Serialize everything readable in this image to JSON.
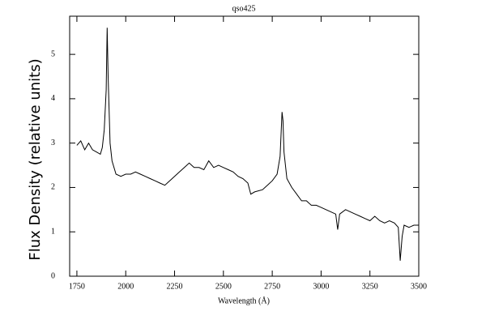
{
  "chart_data": {
    "type": "line",
    "title": "qso425",
    "x_label": "Wavelength (Å)",
    "y_label": "Flux Density (relative units)",
    "x": [
      1750,
      1770,
      1790,
      1810,
      1830,
      1850,
      1870,
      1880,
      1890,
      1900,
      1905,
      1910,
      1920,
      1930,
      1950,
      1975,
      2000,
      2025,
      2050,
      2075,
      2100,
      2125,
      2150,
      2175,
      2200,
      2225,
      2250,
      2275,
      2300,
      2325,
      2350,
      2375,
      2400,
      2425,
      2450,
      2475,
      2500,
      2525,
      2550,
      2575,
      2600,
      2625,
      2640,
      2660,
      2700,
      2725,
      2750,
      2775,
      2790,
      2800,
      2805,
      2810,
      2825,
      2850,
      2875,
      2900,
      2925,
      2950,
      2975,
      3000,
      3050,
      3075,
      3085,
      3095,
      3125,
      3150,
      3175,
      3200,
      3225,
      3250,
      3275,
      3300,
      3325,
      3350,
      3375,
      3395,
      3405,
      3415,
      3425,
      3450,
      3475,
      3500
    ],
    "series": [
      {
        "color": "#000000",
        "values": [
          2.95,
          3.05,
          2.85,
          3.0,
          2.85,
          2.8,
          2.75,
          2.9,
          3.3,
          4.2,
          5.6,
          4.5,
          3.0,
          2.6,
          2.3,
          2.25,
          2.3,
          2.3,
          2.35,
          2.3,
          2.25,
          2.2,
          2.15,
          2.1,
          2.05,
          2.15,
          2.25,
          2.35,
          2.45,
          2.55,
          2.45,
          2.45,
          2.4,
          2.6,
          2.45,
          2.5,
          2.45,
          2.4,
          2.35,
          2.25,
          2.2,
          2.1,
          1.85,
          1.9,
          1.95,
          2.05,
          2.15,
          2.3,
          2.7,
          3.7,
          3.5,
          2.8,
          2.2,
          2.0,
          1.85,
          1.7,
          1.7,
          1.6,
          1.6,
          1.55,
          1.45,
          1.4,
          1.05,
          1.4,
          1.5,
          1.45,
          1.4,
          1.35,
          1.3,
          1.25,
          1.35,
          1.25,
          1.2,
          1.25,
          1.2,
          1.1,
          0.35,
          0.9,
          1.15,
          1.1,
          1.15,
          1.15
        ]
      }
    ],
    "xlim": [
      1713,
      3500
    ],
    "xticks": [
      1750,
      2000,
      2250,
      2500,
      2750,
      3000,
      3250,
      3500
    ],
    "ylim": [
      0,
      5.86
    ],
    "yticks": [
      0,
      1,
      2,
      3,
      4,
      5
    ]
  }
}
